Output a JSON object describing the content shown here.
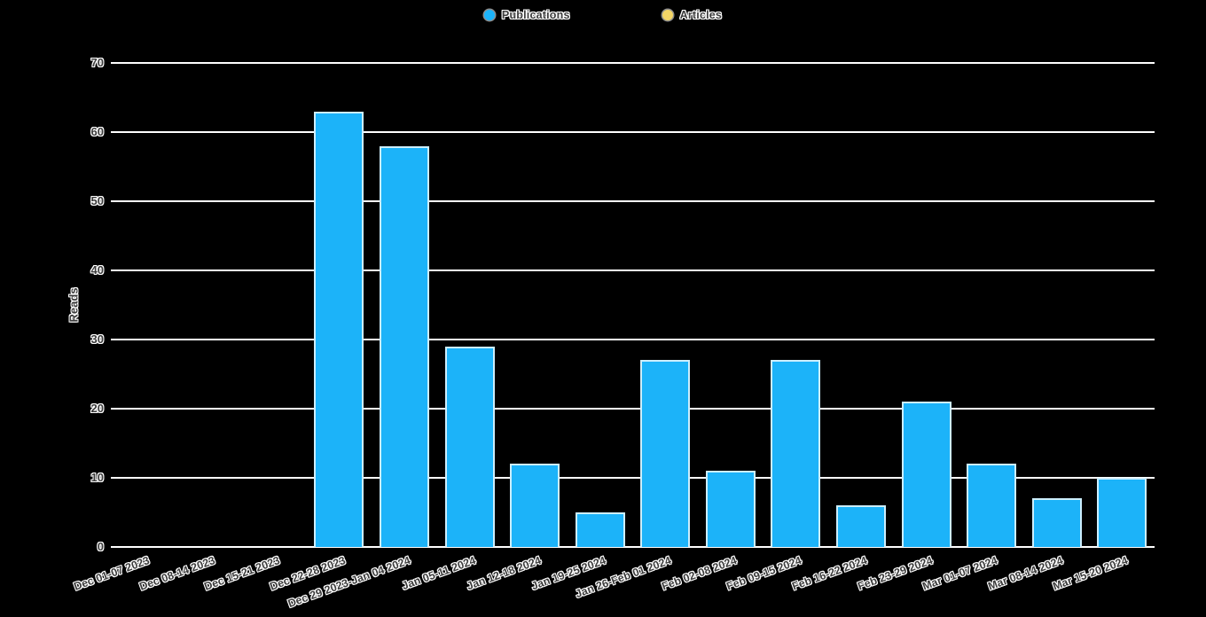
{
  "legend": {
    "items": [
      {
        "label": "Publications",
        "color": "#1cb3f9"
      },
      {
        "label": "Articles",
        "color": "#f3d566"
      }
    ]
  },
  "chart_data": {
    "type": "bar",
    "title": "",
    "xlabel": "",
    "ylabel": "Reads",
    "ylim": [
      0,
      70
    ],
    "yticks": [
      0,
      10,
      20,
      30,
      40,
      50,
      60,
      70
    ],
    "grid": true,
    "legend_position": "top-center",
    "background_color": "#000000",
    "gridline_color": "#ffffff",
    "categories": [
      "Dec 01-07 2023",
      "Dec 08-14 2023",
      "Dec 15-21 2023",
      "Dec 22-28 2023",
      "Dec 29 2023-Jan 04 2024",
      "Jan 05-11 2024",
      "Jan 12-18 2024",
      "Jan 19-25 2024",
      "Jan 26-Feb 01 2024",
      "Feb 02-08 2024",
      "Feb 09-15 2024",
      "Feb 16-22 2024",
      "Feb 23-29 2024",
      "Mar 01-07 2024",
      "Mar 08-14 2024",
      "Mar 15-20 2024"
    ],
    "series": [
      {
        "name": "Publications",
        "color": "#1cb3f9",
        "values": [
          0,
          0,
          0,
          63,
          58,
          29,
          12,
          5,
          27,
          11,
          27,
          6,
          21,
          12,
          7,
          10
        ]
      },
      {
        "name": "Articles",
        "color": "#f3d566",
        "values": []
      }
    ]
  }
}
